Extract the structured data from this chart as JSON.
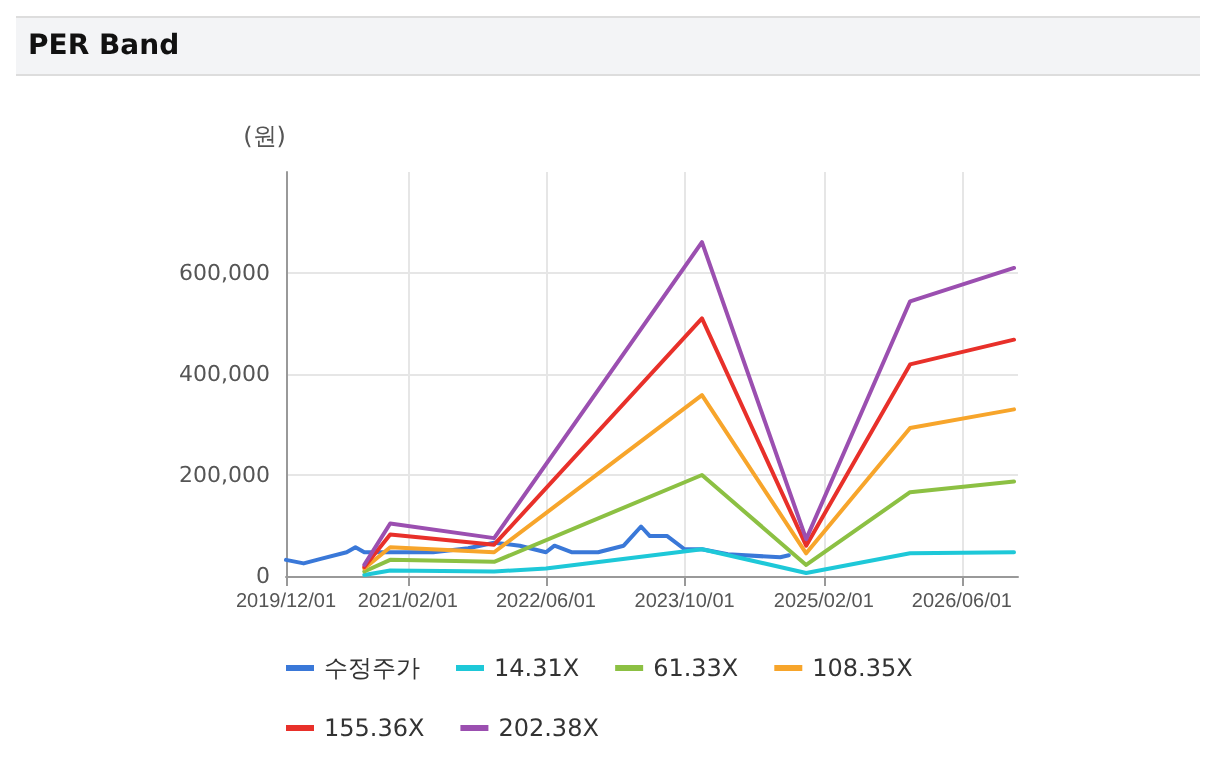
{
  "chart_data": {
    "type": "line",
    "title": "PER Band",
    "ylabel": "(원)",
    "xlim": [
      "2019-12-01",
      "2026-12-15"
    ],
    "xticks": [
      {
        "value": "2019-12-01",
        "label": "2019/12/01"
      },
      {
        "value": "2021-02-01",
        "label": "2021/02/01"
      },
      {
        "value": "2022-06-01",
        "label": "2022/06/01"
      },
      {
        "value": "2023-10-01",
        "label": "2023/10/01"
      },
      {
        "value": "2025-02-01",
        "label": "2025/02/01"
      },
      {
        "value": "2026-06-01",
        "label": "2026/06/01"
      }
    ],
    "ylim": [
      0,
      800000
    ],
    "yticks": [
      {
        "value": 0,
        "label": "0"
      },
      {
        "value": 200000,
        "label": "200,000"
      },
      {
        "value": 400000,
        "label": "400,000"
      },
      {
        "value": 600000,
        "label": "600,000"
      }
    ],
    "grid": true,
    "legend": "bottom",
    "marker": "none",
    "line_style": "solid",
    "series": [
      {
        "name": "수정주가",
        "color": "#3a78d8",
        "x": [
          "2019-12",
          "2020-02",
          "2020-04",
          "2020-07",
          "2020-08",
          "2020-09",
          "2021-01",
          "2021-05",
          "2021-09",
          "2021-12",
          "2022-03",
          "2022-06",
          "2022-07",
          "2022-09",
          "2022-12",
          "2023-03",
          "2023-05",
          "2023-06",
          "2023-08",
          "2023-10",
          "2023-12",
          "2024-03",
          "2024-09",
          "2024-10"
        ],
        "values": [
          32000,
          25000,
          34000,
          47000,
          57000,
          47000,
          47000,
          47000,
          55000,
          66000,
          60000,
          47000,
          60000,
          47000,
          47000,
          60000,
          98000,
          79000,
          79000,
          53000,
          53000,
          43000,
          37000,
          41000
        ]
      },
      {
        "name": "14.31X",
        "color": "#1ec8d8",
        "x": [
          "2020-09",
          "2020-12",
          "2021-12",
          "2022-06",
          "2023-12",
          "2024-12",
          "2025-12",
          "2026-12"
        ],
        "values": [
          2000,
          11000,
          9000,
          15000,
          53000,
          6000,
          45000,
          47000
        ]
      },
      {
        "name": "61.33X",
        "color": "#8cc043",
        "x": [
          "2020-09",
          "2020-12",
          "2021-12",
          "2023-12",
          "2024-12",
          "2025-12",
          "2026-12"
        ],
        "values": [
          9000,
          32000,
          28000,
          200000,
          22000,
          166000,
          187000
        ]
      },
      {
        "name": "108.35X",
        "color": "#f7a52b",
        "x": [
          "2020-09",
          "2020-12",
          "2021-12",
          "2023-12",
          "2024-12",
          "2025-12",
          "2026-12"
        ],
        "values": [
          15000,
          57000,
          47000,
          358000,
          45000,
          293000,
          330000
        ]
      },
      {
        "name": "155.36X",
        "color": "#e8302a",
        "x": [
          "2020-09",
          "2020-12",
          "2021-12",
          "2023-12",
          "2024-12",
          "2025-12",
          "2026-12"
        ],
        "values": [
          18000,
          82000,
          62000,
          510000,
          60000,
          419000,
          468000
        ]
      },
      {
        "name": "202.38X",
        "color": "#9b4fb0",
        "x": [
          "2020-09",
          "2020-12",
          "2021-12",
          "2023-12",
          "2024-12",
          "2025-12",
          "2026-12"
        ],
        "values": [
          22000,
          104000,
          75000,
          661000,
          73000,
          544000,
          610000
        ]
      }
    ]
  }
}
